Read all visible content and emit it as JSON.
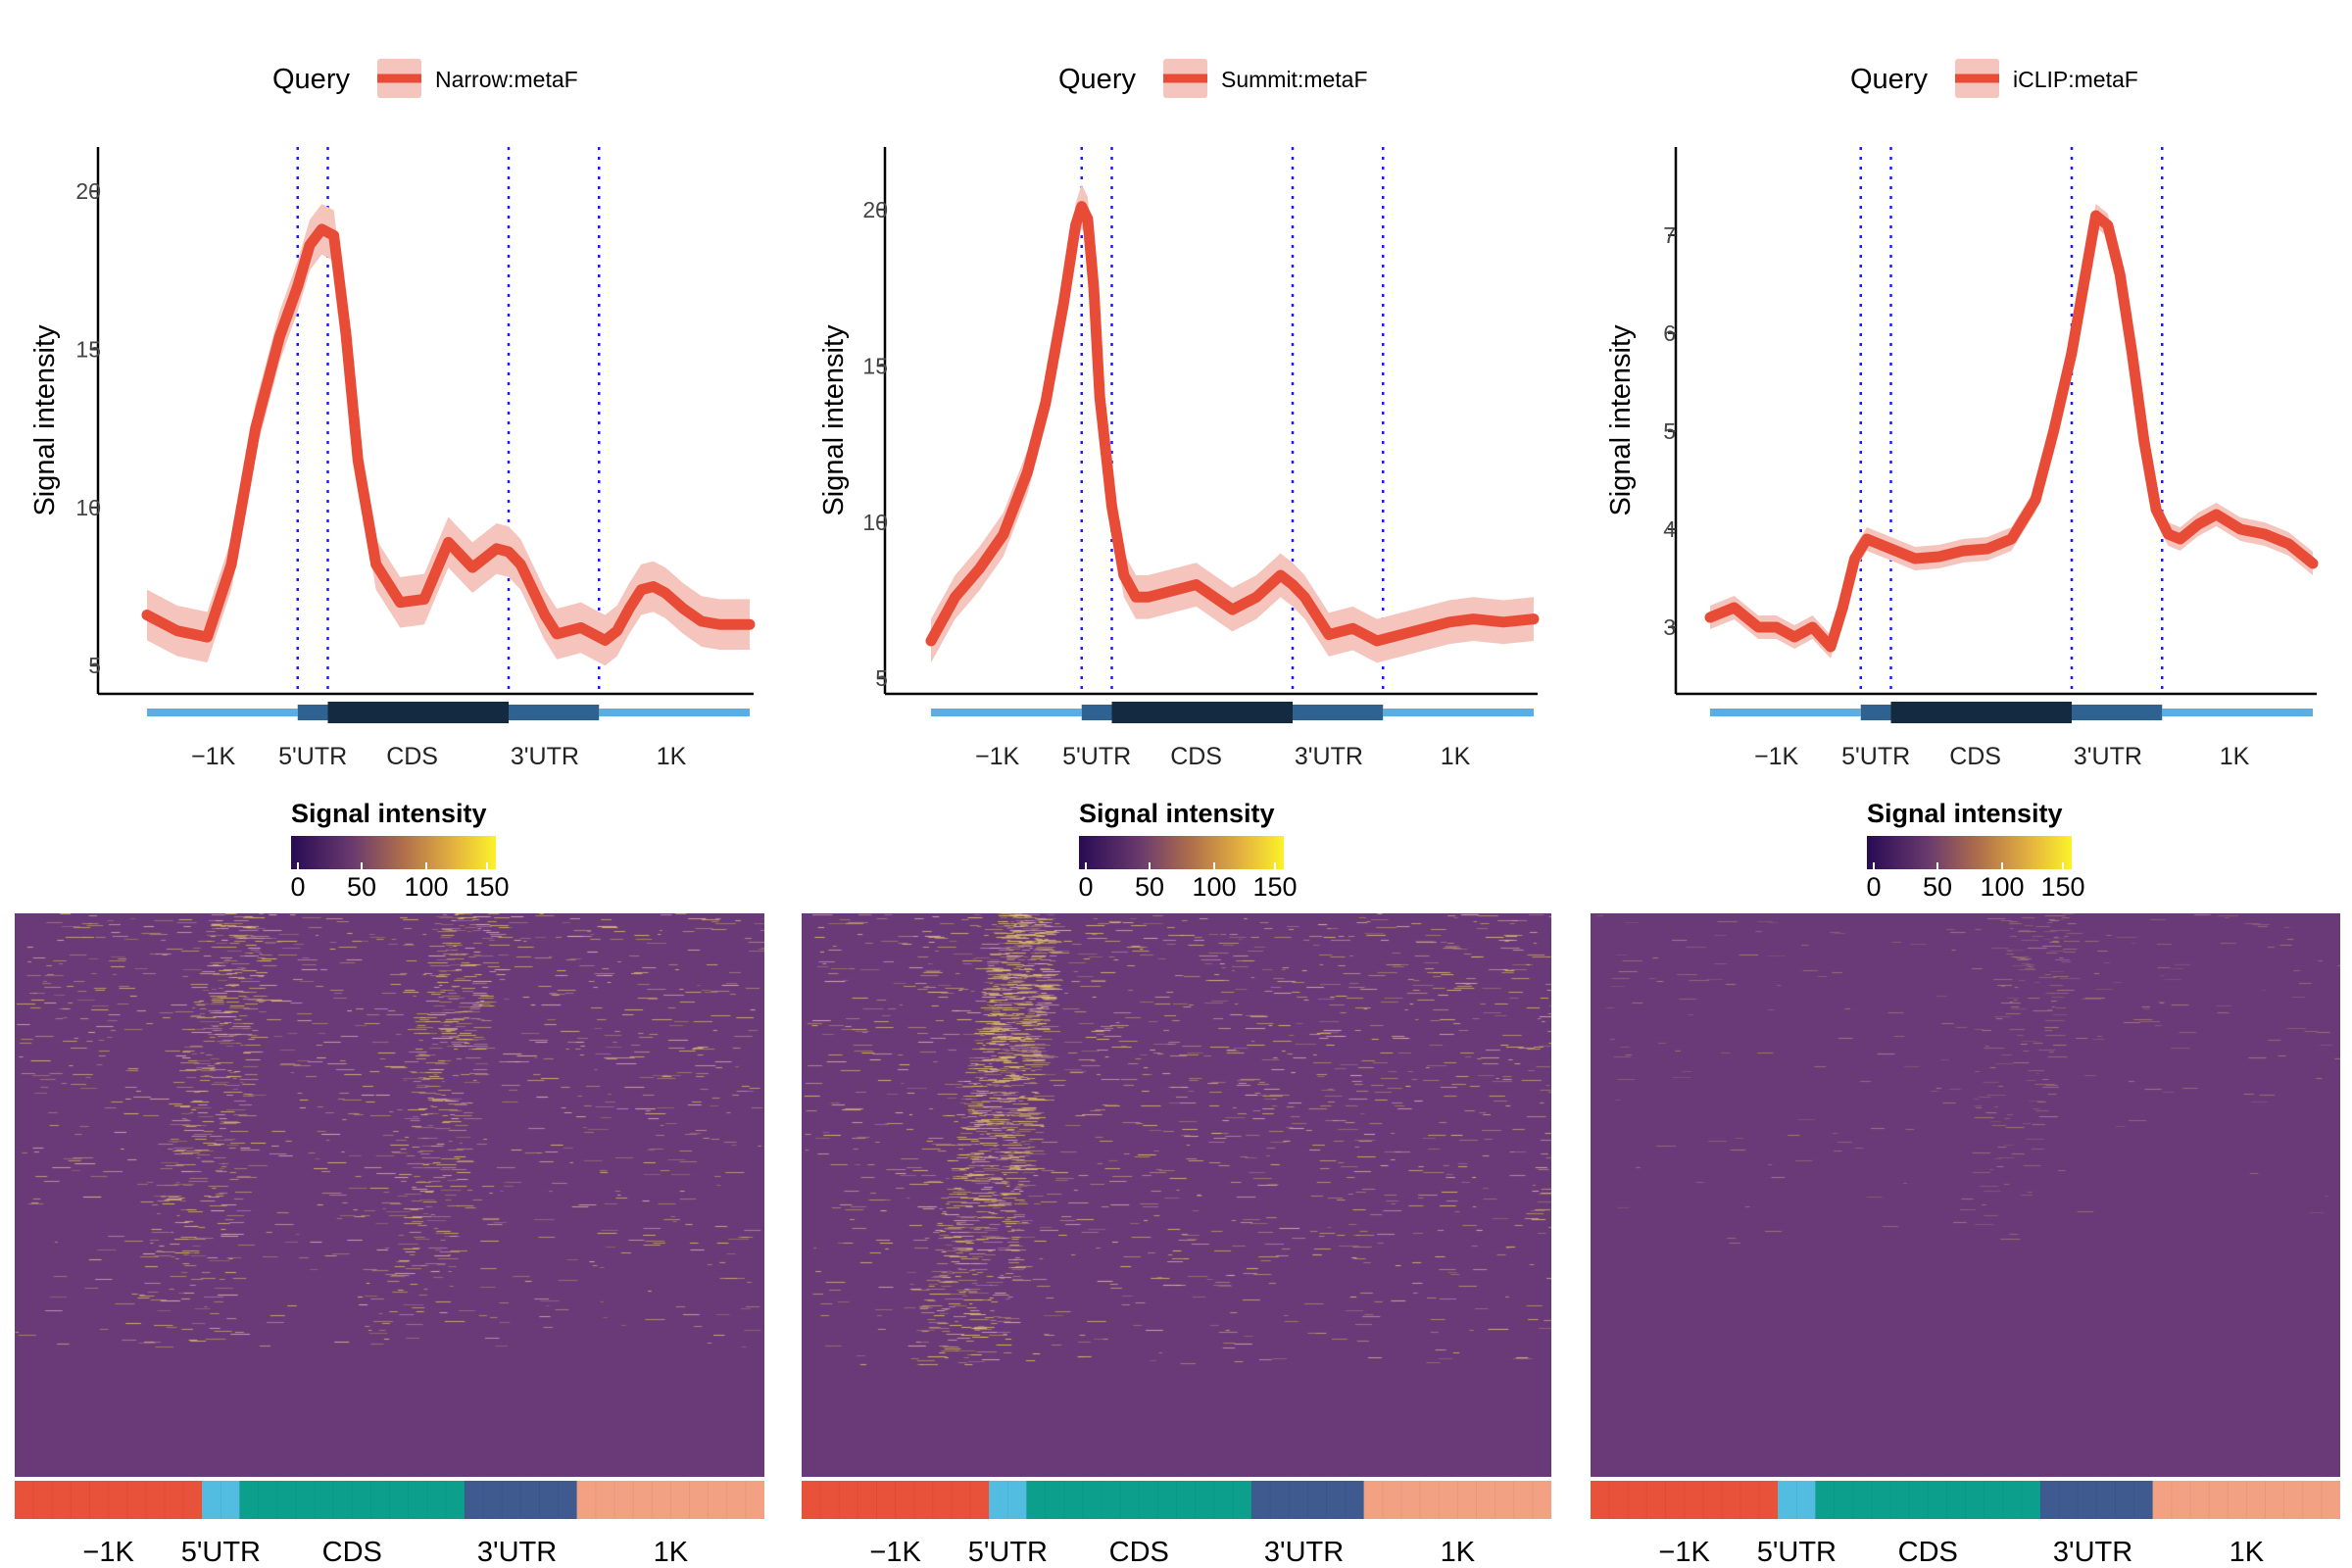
{
  "panels": [
    {
      "legend": {
        "title": "Query",
        "label": "Narrow:metaF"
      },
      "colorbar": {
        "title": "Signal intensity",
        "ticks": [
          "0",
          "50",
          "100",
          "150"
        ]
      },
      "chart_data": {
        "type": "line",
        "ylabel": "Signal intensity",
        "ylim": [
          4.2,
          21.4
        ],
        "yticks": [
          5,
          10,
          15,
          20
        ],
        "xticks": [
          "−1K",
          "5'UTR",
          "CDS",
          "3'UTR",
          "1K"
        ],
        "series": [
          {
            "name": "Narrow:metaF",
            "x": [
              0,
              5,
              10,
              14,
              18,
              22,
              25,
              27,
              29,
              31,
              33,
              35,
              38,
              42,
              46,
              50,
              54,
              58,
              60,
              62,
              64,
              66,
              68,
              70,
              72,
              74,
              76,
              78,
              80,
              82,
              84,
              86,
              89,
              92,
              95,
              98,
              100
            ],
            "y": [
              6.6,
              6.1,
              5.9,
              8.2,
              12.5,
              15.4,
              17.0,
              18.3,
              18.8,
              18.6,
              15.5,
              11.5,
              8.2,
              7.0,
              7.1,
              8.9,
              8.1,
              8.7,
              8.6,
              8.2,
              7.4,
              6.6,
              6.0,
              6.1,
              6.2,
              6.0,
              5.8,
              6.1,
              6.8,
              7.4,
              7.5,
              7.3,
              6.8,
              6.4,
              6.3,
              6.3,
              6.3
            ]
          }
        ],
        "ci_halfwidth": 0.8,
        "region_boundaries_pct": [
          25,
          30,
          60,
          75
        ]
      },
      "heatmap": {
        "density_start": 0.6,
        "density_end": 0.2,
        "peak_pct": [
          30,
          60
        ],
        "fade_row_fraction": 0.72,
        "intensity_scale": 1.0
      }
    },
    {
      "legend": {
        "title": "Query",
        "label": "Summit:metaF"
      },
      "colorbar": {
        "title": "Signal intensity",
        "ticks": [
          "0",
          "50",
          "100",
          "150"
        ]
      },
      "chart_data": {
        "type": "line",
        "ylabel": "Signal intensity",
        "ylim": [
          4.6,
          22.0
        ],
        "yticks": [
          5,
          10,
          15,
          20
        ],
        "xticks": [
          "−1K",
          "5'UTR",
          "CDS",
          "3'UTR",
          "1K"
        ],
        "series": [
          {
            "name": "Summit:metaF",
            "x": [
              0,
              4,
              8,
              12,
              16,
              19,
              22,
              24,
              25,
              26,
              27,
              28,
              30,
              32,
              34,
              36,
              40,
              44,
              47,
              50,
              54,
              58,
              60,
              62,
              64,
              66,
              70,
              74,
              78,
              82,
              86,
              90,
              95,
              100
            ],
            "y": [
              6.2,
              7.6,
              8.5,
              9.6,
              11.6,
              13.8,
              17.0,
              19.5,
              20.1,
              19.7,
              17.5,
              14.0,
              10.5,
              8.3,
              7.6,
              7.6,
              7.8,
              8.0,
              7.6,
              7.2,
              7.6,
              8.3,
              8.0,
              7.6,
              7.0,
              6.4,
              6.6,
              6.2,
              6.4,
              6.6,
              6.8,
              6.9,
              6.8,
              6.9
            ]
          }
        ],
        "ci_halfwidth": 0.7,
        "region_boundaries_pct": [
          25,
          30,
          60,
          75
        ]
      },
      "heatmap": {
        "density_start": 0.7,
        "density_end": 0.25,
        "peak_pct": [
          30
        ],
        "fade_row_fraction": 0.75,
        "intensity_scale": 1.1
      }
    },
    {
      "legend": {
        "title": "Query",
        "label": "iCLIP:metaF"
      },
      "colorbar": {
        "title": "Signal intensity",
        "ticks": [
          "0",
          "50",
          "100",
          "150"
        ]
      },
      "chart_data": {
        "type": "line",
        "ylabel": "Signal intensity",
        "ylim": [
          2.35,
          7.9
        ],
        "yticks": [
          3,
          4,
          5,
          6,
          7
        ],
        "xticks": [
          "−1K",
          "5'UTR",
          "CDS",
          "3'UTR",
          "1K"
        ],
        "series": [
          {
            "name": "iCLIP:metaF",
            "x": [
              0,
              4,
              8,
              11,
              14,
              17,
              20,
              22,
              24,
              26,
              28,
              30,
              34,
              38,
              42,
              46,
              50,
              54,
              57,
              60,
              62,
              64,
              66,
              68,
              70,
              72,
              74,
              76,
              78,
              81,
              84,
              88,
              92,
              96,
              100
            ],
            "y": [
              3.1,
              3.2,
              3.0,
              3.0,
              2.9,
              3.0,
              2.8,
              3.2,
              3.7,
              3.9,
              3.85,
              3.8,
              3.7,
              3.72,
              3.78,
              3.8,
              3.9,
              4.3,
              5.0,
              5.8,
              6.5,
              7.2,
              7.1,
              6.6,
              5.8,
              4.9,
              4.2,
              3.95,
              3.9,
              4.05,
              4.15,
              4.0,
              3.95,
              3.85,
              3.65
            ]
          }
        ],
        "ci_halfwidth": 0.12,
        "region_boundaries_pct": [
          25,
          30,
          60,
          75
        ]
      },
      "heatmap": {
        "density_start": 0.4,
        "density_end": 0.1,
        "peak_pct": [
          60
        ],
        "fade_row_fraction": 0.6,
        "intensity_scale": 0.55
      }
    }
  ],
  "bottom_regions": {
    "labels": [
      "−1K",
      "5'UTR",
      "CDS",
      "3'UTR",
      "1K"
    ],
    "colors": [
      "#e8513a",
      "#52bde0",
      "#0ca08c",
      "#3e5a8e",
      "#f3a183"
    ]
  },
  "colors": {
    "line": "#e84c37",
    "ribbon": "#f5c4bc",
    "vline": "#1a1aff",
    "gene_flank": "#5aaee3",
    "gene_utr": "#2f6291",
    "gene_cds": "#132a40",
    "heatmap_bg": "#6b3b7a",
    "heatmap_hi": "#e8c66a"
  }
}
